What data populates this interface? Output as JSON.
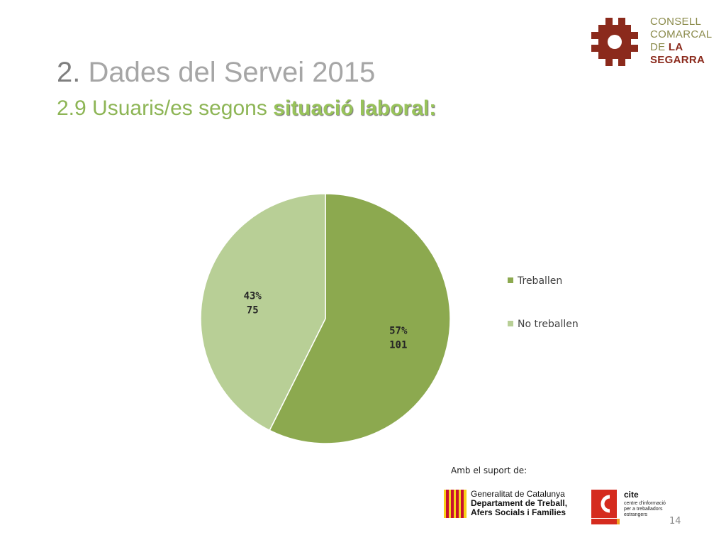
{
  "slide": {
    "title_number": "2.",
    "title_text": "Dades del Servei  2015",
    "subtitle_text": "2.9 Usuaris/es segons",
    "subtitle_emphasis": "situació laboral:",
    "page_number": "14"
  },
  "council_logo": {
    "line1": "CONSELL",
    "line2": "COMARCAL",
    "line3_a": "DE",
    "line3_b": "LA",
    "line4": "SEGARRA",
    "colors": {
      "mark": "#8b2a1c",
      "text": "#8a8a4a"
    }
  },
  "support": {
    "label": "Amb el suport de:",
    "gencat_line1": "Generalitat de Catalunya",
    "gencat_line2": "Departament de Treball,",
    "gencat_line3": "Afers Socials i Famílies",
    "cite_name": "cite",
    "cite_line1": "centre d'informació",
    "cite_line2": "per a treballadors",
    "cite_line3": "estrangers"
  },
  "chart_data": {
    "type": "pie",
    "title": "",
    "categories": [
      "Treballen",
      "No treballen"
    ],
    "values": [
      101,
      75
    ],
    "percent_labels": [
      "57%",
      "43%"
    ],
    "colors": [
      "#8ca94f",
      "#b8cf96"
    ],
    "start_angle_deg": 0,
    "direction": "clockwise",
    "legend_position": "right"
  }
}
